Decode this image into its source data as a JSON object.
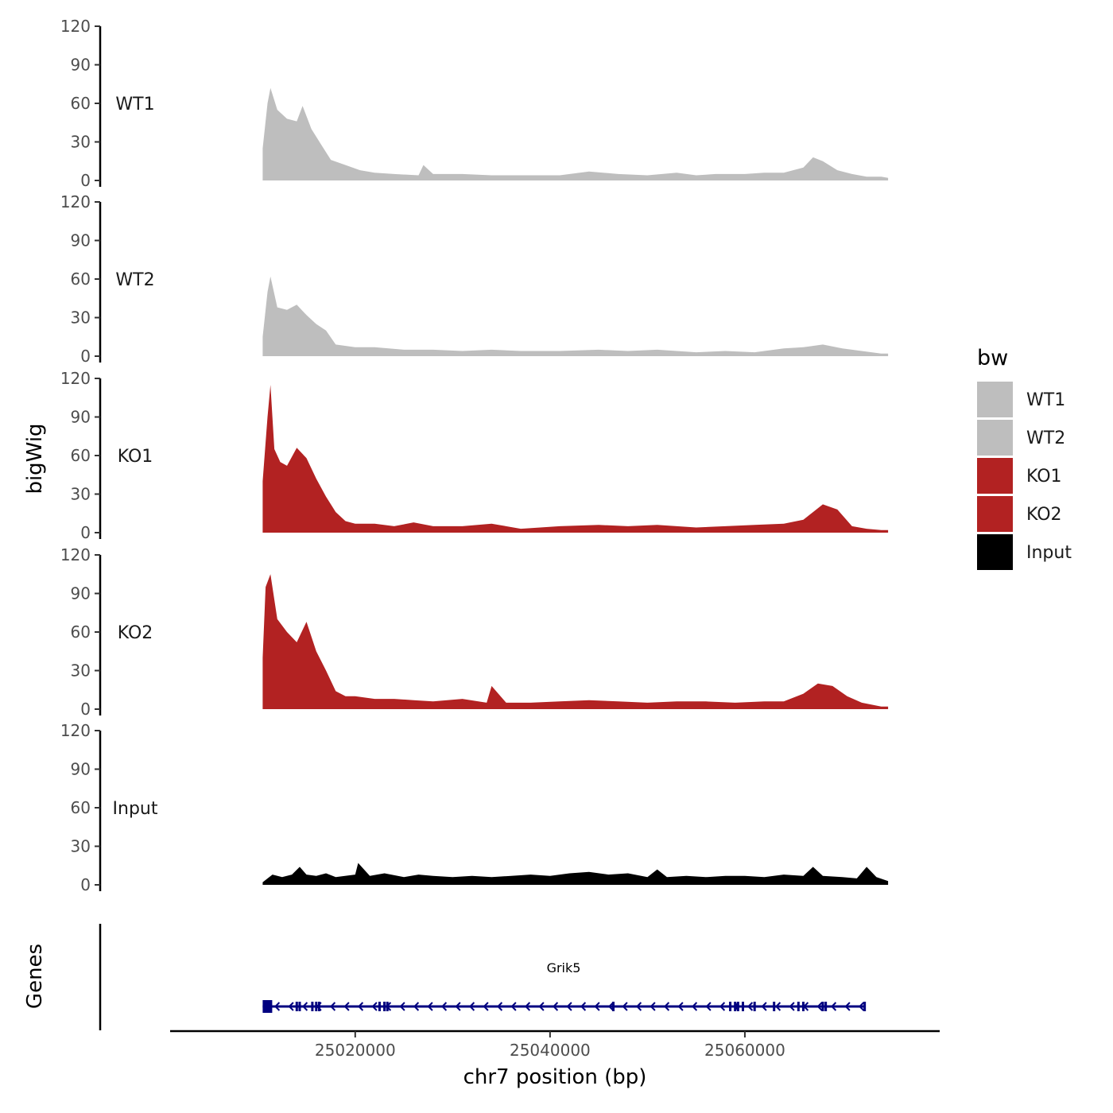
{
  "chart_data": {
    "type": "area",
    "subtype": "genome-track",
    "ylabel": "bigWig",
    "genes_panel_label": "Genes",
    "xlabel": "chr7 position (bp)",
    "xlim": [
      25001000,
      25080000
    ],
    "x_ticks": [
      25020000,
      25040000,
      25060000
    ],
    "x_tick_labels": [
      "25020000",
      "25040000",
      "25060000"
    ],
    "ylim": [
      0,
      120
    ],
    "y_ticks": [
      0,
      30,
      60,
      90,
      120
    ],
    "y_tick_labels": [
      "0",
      "30",
      "60",
      "90",
      "120"
    ],
    "data_range": [
      25010500,
      25074700
    ],
    "legend": {
      "title": "bw",
      "position": "right",
      "entries": [
        {
          "label": "WT1",
          "color": "#bebebe"
        },
        {
          "label": "WT2",
          "color": "#bebebe"
        },
        {
          "label": "KO1",
          "color": "#b22222"
        },
        {
          "label": "KO2",
          "color": "#b22222"
        },
        {
          "label": "Input",
          "color": "#000000"
        }
      ]
    },
    "series": [
      {
        "name": "WT1",
        "color": "#bebebe",
        "x": [
          25010500,
          25011000,
          25011300,
          25012000,
          25013000,
          25014000,
          25014600,
          25015500,
          25016500,
          25017500,
          25019000,
          25020500,
          25022000,
          25024000,
          25026500,
          25027000,
          25028000,
          25031000,
          25034000,
          25037000,
          25041000,
          25044000,
          25047000,
          25050000,
          25053000,
          25055000,
          25057000,
          25060000,
          25062000,
          25064000,
          25066000,
          25067000,
          25068000,
          25069500,
          25071000,
          25072500,
          25074000,
          25074700
        ],
        "values": [
          25,
          60,
          72,
          55,
          48,
          46,
          58,
          40,
          28,
          16,
          12,
          8,
          6,
          5,
          4,
          12,
          5,
          5,
          4,
          4,
          4,
          7,
          5,
          4,
          6,
          4,
          5,
          5,
          6,
          6,
          10,
          18,
          15,
          8,
          5,
          3,
          3,
          2
        ]
      },
      {
        "name": "WT2",
        "color": "#bebebe",
        "x": [
          25010500,
          25011000,
          25011300,
          25012000,
          25013000,
          25014000,
          25015000,
          25016000,
          25017000,
          25018000,
          25020000,
          25022000,
          25025000,
          25028000,
          25031000,
          25034000,
          25037000,
          25041000,
          25045000,
          25048000,
          25051000,
          25055000,
          25058000,
          25061000,
          25064000,
          25066000,
          25068000,
          25070000,
          25072000,
          25074000,
          25074700
        ],
        "values": [
          15,
          50,
          62,
          38,
          36,
          40,
          32,
          25,
          20,
          9,
          7,
          7,
          5,
          5,
          4,
          5,
          4,
          4,
          5,
          4,
          5,
          3,
          4,
          3,
          6,
          7,
          9,
          6,
          4,
          2,
          2
        ]
      },
      {
        "name": "KO1",
        "color": "#b22222",
        "x": [
          25010500,
          25011000,
          25011300,
          25011700,
          25012300,
          25013000,
          25014000,
          25015000,
          25016000,
          25017000,
          25018000,
          25019000,
          25020000,
          25022000,
          25024000,
          25026000,
          25028000,
          25031000,
          25034000,
          25037000,
          25041000,
          25045000,
          25048000,
          25051000,
          25055000,
          25058000,
          25061000,
          25064000,
          25066000,
          25067000,
          25068000,
          25069500,
          25071000,
          25072500,
          25074000,
          25074700
        ],
        "values": [
          40,
          90,
          115,
          65,
          55,
          52,
          66,
          58,
          42,
          28,
          16,
          9,
          7,
          7,
          5,
          8,
          5,
          5,
          7,
          3,
          5,
          6,
          5,
          6,
          4,
          5,
          6,
          7,
          10,
          16,
          22,
          18,
          5,
          3,
          2,
          2
        ]
      },
      {
        "name": "KO2",
        "color": "#b22222",
        "x": [
          25010500,
          25010800,
          25011300,
          25012000,
          25013000,
          25014000,
          25015000,
          25016000,
          25017000,
          25018000,
          25019000,
          25020000,
          25022000,
          25024000,
          25026000,
          25028000,
          25031000,
          25033500,
          25034000,
          25035500,
          25038000,
          25041000,
          25044000,
          25047000,
          25050000,
          25053000,
          25056000,
          25059000,
          25062000,
          25064000,
          25066000,
          25067500,
          25069000,
          25070500,
          25072000,
          25074000,
          25074700
        ],
        "values": [
          40,
          95,
          105,
          70,
          60,
          52,
          68,
          45,
          30,
          14,
          10,
          10,
          8,
          8,
          7,
          6,
          8,
          5,
          18,
          5,
          5,
          6,
          7,
          6,
          5,
          6,
          6,
          5,
          6,
          6,
          12,
          20,
          18,
          10,
          5,
          2,
          2
        ]
      },
      {
        "name": "Input",
        "color": "#000000",
        "x": [
          25010500,
          25011500,
          25012500,
          25013500,
          25014300,
          25015000,
          25016000,
          25017000,
          25018000,
          25020000,
          25020300,
          25021500,
          25023000,
          25025000,
          25026500,
          25028000,
          25030000,
          25032000,
          25034000,
          25036000,
          25038000,
          25040000,
          25042000,
          25044000,
          25046000,
          25048000,
          25050000,
          25051000,
          25052000,
          25054000,
          25056000,
          25058000,
          25060000,
          25062000,
          25064000,
          25066000,
          25067000,
          25068000,
          25070000,
          25071500,
          25072500,
          25073500,
          25074700
        ],
        "values": [
          2,
          8,
          6,
          8,
          14,
          8,
          7,
          9,
          6,
          8,
          17,
          7,
          9,
          6,
          8,
          7,
          6,
          7,
          6,
          7,
          8,
          7,
          9,
          10,
          8,
          9,
          6,
          12,
          6,
          7,
          6,
          7,
          7,
          6,
          8,
          7,
          14,
          7,
          6,
          5,
          14,
          6,
          3
        ]
      }
    ],
    "genes": [
      {
        "name": "Grik5",
        "strand": "-",
        "color": "#000080",
        "start": 25010500,
        "end": 25072300,
        "exons": [
          25010500,
          25011200,
          25014000,
          25014300,
          25015600,
          25016000,
          25016300,
          25022500,
          25023000,
          25023300,
          25046500,
          25058500,
          25059000,
          25059300,
          25059800,
          25061000,
          25063000,
          25065500,
          25066000,
          25068000,
          25068300,
          25072300
        ]
      }
    ]
  }
}
